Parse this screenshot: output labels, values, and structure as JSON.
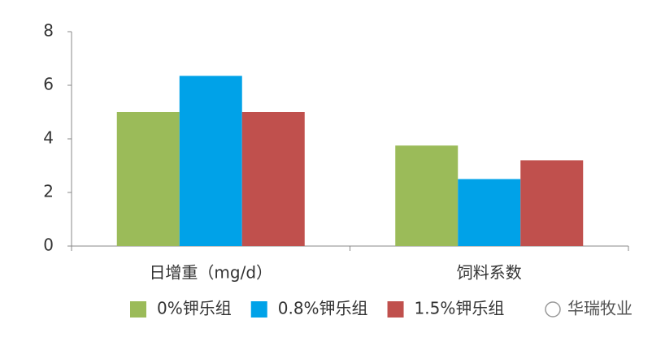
{
  "chart_data": {
    "type": "bar",
    "categories": [
      "日增重（mg/d）",
      "饲料系数"
    ],
    "series": [
      {
        "name": "0%钾乐组",
        "color": "#9bbb59",
        "values": [
          5.0,
          3.75
        ]
      },
      {
        "name": "0.8%钾乐组",
        "color": "#00a2e8",
        "values": [
          6.35,
          2.5
        ]
      },
      {
        "name": "1.5%钾乐组",
        "color": "#c0504d",
        "values": [
          5.0,
          3.2
        ]
      }
    ],
    "ylim": [
      0,
      8
    ],
    "yticks": [
      0,
      2,
      4,
      6,
      8
    ],
    "grid": false,
    "legend": "bottom"
  },
  "watermark": "华瑞牧业"
}
